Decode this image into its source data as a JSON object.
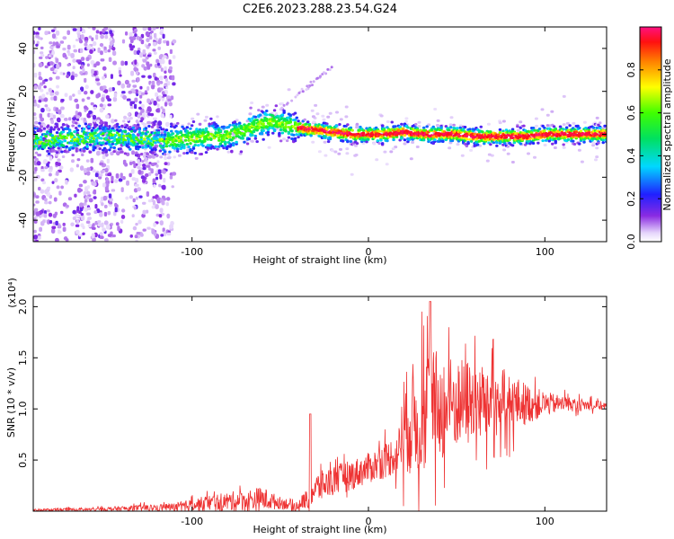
{
  "title": "C2E6.2023.288.23.54.G24",
  "chart_data": [
    {
      "type": "heatmap",
      "xlabel": "Height of straight line (km)",
      "ylabel": "Frequency (Hz)",
      "xlim": [
        -190,
        135
      ],
      "ylim": [
        -50,
        50
      ],
      "xticks": [
        -100,
        0,
        100
      ],
      "yticks": [
        -40,
        -20,
        0,
        20,
        40
      ],
      "colorbar": {
        "label": "Normalized spectral amplitude",
        "range": [
          0.0,
          1.0
        ],
        "ticks": [
          0.0,
          0.2,
          0.4,
          0.6,
          0.8
        ],
        "tick_labels": [
          "0.0",
          "0.2",
          "0.4",
          "0.6",
          "0.8"
        ],
        "colormap": "rainbow (violet to red/magenta)"
      },
      "ridge": {
        "description": "dominant spectral peak frequency versus height",
        "x": [
          -190,
          -170,
          -150,
          -130,
          -115,
          -100,
          -90,
          -80,
          -70,
          -60,
          -55,
          -50,
          -45,
          -40,
          -30,
          -20,
          -10,
          0,
          10,
          20,
          30,
          40,
          50,
          60,
          70,
          80,
          90,
          100,
          110,
          120,
          135
        ],
        "y": [
          -3,
          -2,
          -1,
          -2,
          -3,
          -2,
          -1,
          -1,
          2,
          5,
          6,
          5,
          4,
          3,
          2,
          1,
          0,
          0,
          0,
          1,
          0,
          0,
          0,
          -1,
          -1,
          -1,
          -1,
          0,
          0,
          0,
          0
        ]
      }
    },
    {
      "type": "line",
      "xlabel": "Height of straight line (km)",
      "ylabel": "SNR (10 * v/v)",
      "y_multiplier": "(x10⁴)",
      "xlim": [
        -190,
        135
      ],
      "ylim": [
        0,
        2.1
      ],
      "xticks": [
        -100,
        0,
        100
      ],
      "yticks": [
        0.5,
        1.0,
        1.5,
        2.0
      ],
      "ytick_labels": [
        "0.5",
        "1.0",
        "1.5",
        "2.0"
      ],
      "color": "#ee3333",
      "envelope": {
        "description": "approximate trend (x, mean, half-amplitude of oscillation) in units of 10^4",
        "x": [
          -190,
          -150,
          -110,
          -90,
          -75,
          -60,
          -50,
          -40,
          -35,
          -30,
          -20,
          -10,
          0,
          10,
          17,
          20,
          25,
          30,
          35,
          40,
          50,
          60,
          70,
          80,
          90,
          100,
          110,
          120,
          135
        ],
        "mean": [
          0.01,
          0.02,
          0.04,
          0.08,
          0.1,
          0.12,
          0.08,
          0.06,
          0.12,
          0.22,
          0.3,
          0.35,
          0.42,
          0.5,
          0.58,
          0.85,
          0.9,
          0.95,
          1.0,
          1.02,
          1.05,
          1.06,
          1.08,
          1.06,
          1.05,
          1.05,
          1.05,
          1.04,
          1.03
        ],
        "amp": [
          0.01,
          0.02,
          0.04,
          0.08,
          0.1,
          0.12,
          0.06,
          0.05,
          0.1,
          0.15,
          0.15,
          0.15,
          0.15,
          0.18,
          0.2,
          0.5,
          0.55,
          0.58,
          0.6,
          0.55,
          0.45,
          0.42,
          0.38,
          0.3,
          0.2,
          0.12,
          0.08,
          0.06,
          0.04
        ]
      }
    }
  ]
}
